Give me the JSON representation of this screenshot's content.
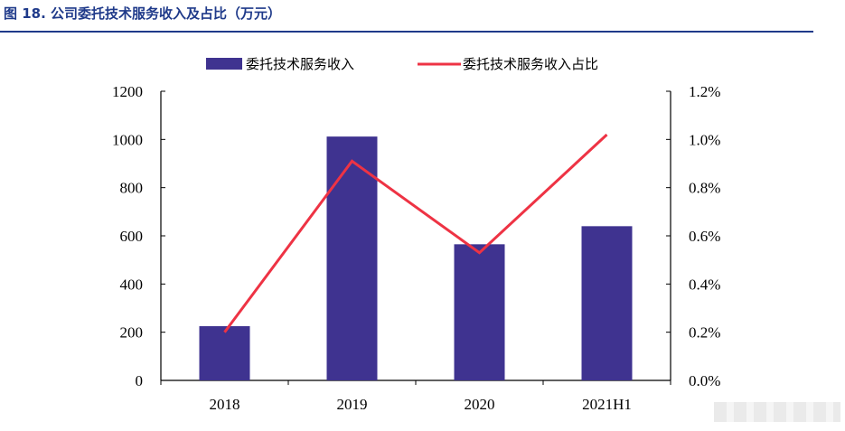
{
  "figure": {
    "title": "图 18. 公司委托技术服务收入及占比（万元）"
  },
  "chart_data": {
    "type": "bar",
    "categories": [
      "2018",
      "2019",
      "2020",
      "2021H1"
    ],
    "series": [
      {
        "name": "委托技术服务收入",
        "type": "bar",
        "axis": "left",
        "values": [
          225,
          1012,
          565,
          640
        ],
        "color": "#3f3390"
      },
      {
        "name": "委托技术服务收入占比",
        "type": "line",
        "axis": "right",
        "values": [
          0.002,
          0.0091,
          0.0053,
          0.0102
        ],
        "color": "#ee3344"
      }
    ],
    "left_axis": {
      "ylim": [
        0,
        1200
      ],
      "ticks": [
        0,
        200,
        400,
        600,
        800,
        1000,
        1200
      ],
      "tick_labels": [
        "0",
        "200",
        "400",
        "600",
        "800",
        "1000",
        "1200"
      ]
    },
    "right_axis": {
      "ylim": [
        0,
        0.012
      ],
      "ticks": [
        0,
        0.002,
        0.004,
        0.006,
        0.008,
        0.01,
        0.012
      ],
      "tick_labels": [
        "0.0%",
        "0.2%",
        "0.4%",
        "0.6%",
        "0.8%",
        "1.0%",
        "1.2%"
      ]
    },
    "grid": false,
    "legend_position": "top-center"
  }
}
